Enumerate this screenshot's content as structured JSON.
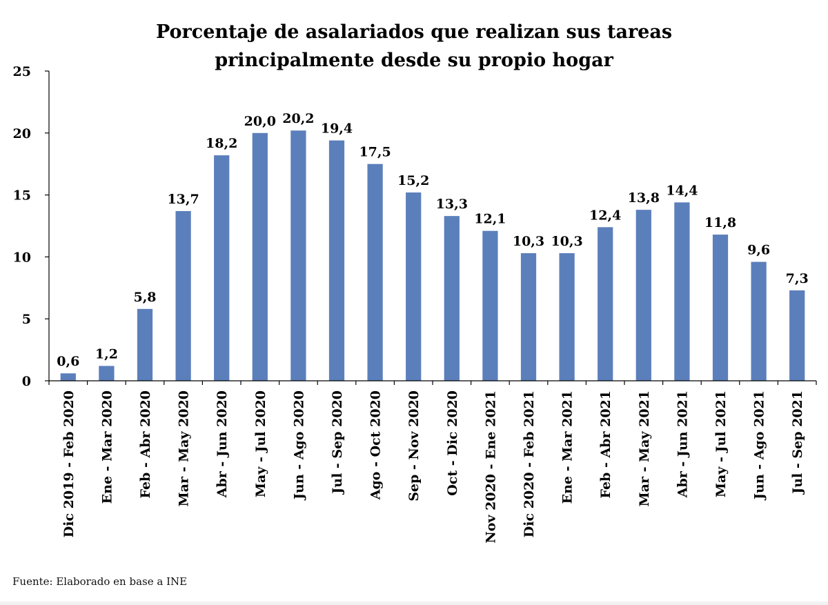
{
  "chart_data": {
    "type": "bar",
    "title": "Porcentaje de asalariados que realizan sus tareas principalmente desde su propio hogar",
    "title_lines": [
      "Porcentaje de asalariados que realizan sus tareas",
      "principalmente desde su propio hogar"
    ],
    "xlabel": "",
    "ylabel": "",
    "ylim": [
      0,
      25
    ],
    "yticks": [
      0,
      5,
      10,
      15,
      20,
      25
    ],
    "grid": false,
    "legend": "none",
    "bar_color": "#5b7fbb",
    "categories": [
      "Dic 2019 - Feb 2020",
      "Ene - Mar 2020",
      "Feb - Abr 2020",
      "Mar - May 2020",
      "Abr - Jun 2020",
      "May - Jul 2020",
      "Jun - Ago 2020",
      "Jul - Sep 2020",
      "Ago - Oct 2020",
      "Sep - Nov 2020",
      "Oct - Dic 2020",
      "Nov 2020 - Ene 2021",
      "Dic 2020 - Feb 2021",
      "Ene - Mar 2021",
      "Feb - Abr 2021",
      "Mar - May 2021",
      "Abr - Jun 2021",
      "May - Jul 2021",
      "Jun - Ago 2021",
      "Jul - Sep 2021"
    ],
    "values": [
      0.6,
      1.2,
      5.8,
      13.7,
      18.2,
      20.0,
      20.2,
      19.4,
      17.5,
      15.2,
      13.3,
      12.1,
      10.3,
      10.3,
      12.4,
      13.8,
      14.4,
      11.8,
      9.6,
      7.3
    ],
    "data_labels": [
      "0,6",
      "1,2",
      "5,8",
      "13,7",
      "18,2",
      "20,0",
      "20,2",
      "19,4",
      "17,5",
      "15,2",
      "13,3",
      "12,1",
      "10,3",
      "10,3",
      "12,4",
      "13,8",
      "14,4",
      "11,8",
      "9,6",
      "7,3"
    ],
    "source": "Fuente: Elaborado en base a INE"
  }
}
